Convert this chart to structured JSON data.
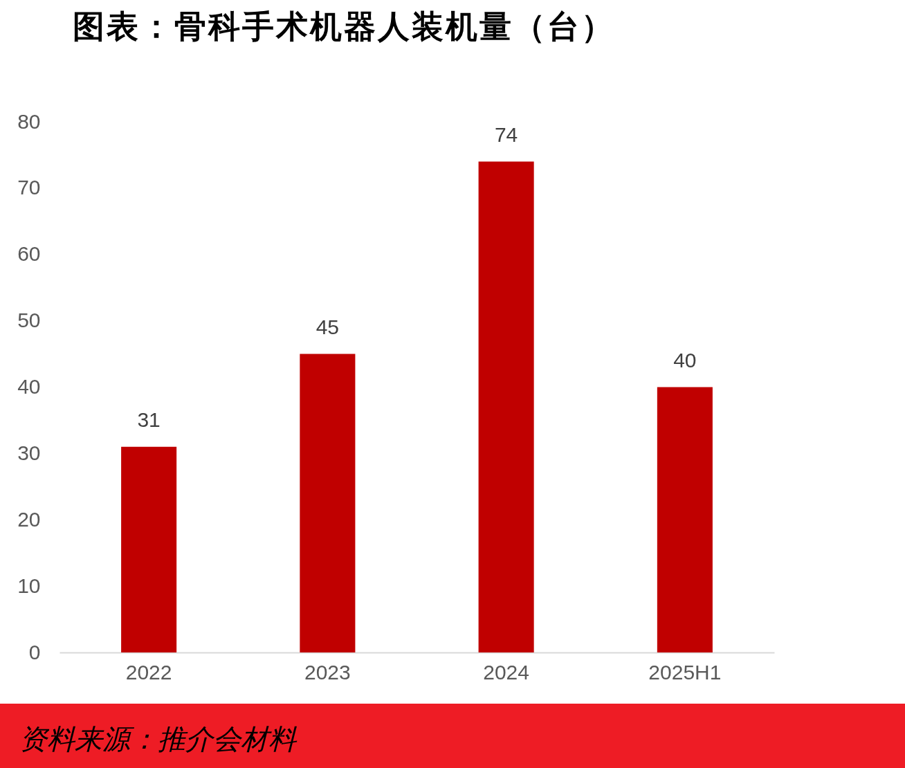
{
  "chart_data": {
    "type": "bar",
    "title": "图表：骨科手术机器人装机量（台）",
    "categories": [
      "2022",
      "2023",
      "2024",
      "2025H1"
    ],
    "values": [
      31,
      45,
      74,
      40
    ],
    "color": "#c00000",
    "ylim": [
      0,
      80
    ],
    "yticks": [
      0,
      10,
      20,
      30,
      40,
      50,
      60,
      70,
      80
    ],
    "grid": false,
    "data_labels": true,
    "annotations": [
      "资料来源：推介会材料"
    ]
  }
}
